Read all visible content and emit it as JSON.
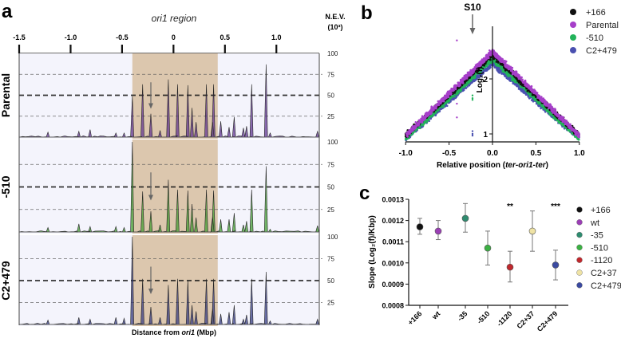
{
  "panels": {
    "a": "a",
    "b": "b",
    "c": "c"
  },
  "chart_data": [
    {
      "type": "area",
      "panel": "a",
      "title": "ori1 region",
      "xlabel_prefix": "Distance from ",
      "xlabel_italic": "ori1",
      "xlabel_suffix": " (Mbp)",
      "ylabel_line1": "N.E.V.",
      "ylabel_line2": "(10³)",
      "xticks": [
        -1.5,
        -1.0,
        -0.5,
        0,
        0.5,
        1.0
      ],
      "xtick_labels": [
        "-1.5",
        "-1.0",
        "-0.5",
        "0",
        "0.5",
        "1.0"
      ],
      "xlim": [
        -1.5,
        1.42
      ],
      "yticks": [
        25,
        50,
        75,
        100
      ],
      "ytick_labels": [
        "25",
        "50",
        "75",
        "100"
      ],
      "ylim": [
        0,
        100
      ],
      "highlight_region": [
        -0.4,
        0.43
      ],
      "arrow_position": -0.22,
      "tracks": [
        {
          "name": "Parental",
          "color": "#5b2d8e",
          "peaks": [
            [
              -1.22,
              6
            ],
            [
              -0.92,
              7
            ],
            [
              -0.81,
              9
            ],
            [
              -0.56,
              5
            ],
            [
              -0.48,
              5
            ],
            [
              -0.4,
              49
            ],
            [
              -0.3,
              63
            ],
            [
              -0.22,
              28
            ],
            [
              -0.13,
              8
            ],
            [
              -0.05,
              69
            ],
            [
              0.04,
              63
            ],
            [
              0.14,
              62
            ],
            [
              0.18,
              35
            ],
            [
              0.22,
              18
            ],
            [
              0.32,
              63
            ],
            [
              0.38,
              18
            ],
            [
              0.39,
              63
            ],
            [
              0.46,
              19
            ],
            [
              0.54,
              12
            ],
            [
              0.59,
              24
            ],
            [
              0.68,
              11
            ],
            [
              0.71,
              13
            ],
            [
              0.76,
              63
            ],
            [
              0.9,
              87
            ],
            [
              0.94,
              5
            ],
            [
              1.4,
              7
            ]
          ]
        },
        {
          "name": "-510",
          "color": "#3a9a2a",
          "peaks": [
            [
              -1.22,
              5
            ],
            [
              -0.92,
              9
            ],
            [
              -0.81,
              6
            ],
            [
              -0.56,
              6
            ],
            [
              -0.48,
              5
            ],
            [
              -0.4,
              100
            ],
            [
              -0.3,
              45
            ],
            [
              -0.22,
              23
            ],
            [
              -0.13,
              8
            ],
            [
              -0.05,
              58
            ],
            [
              0.04,
              47
            ],
            [
              0.14,
              46
            ],
            [
              0.18,
              31
            ],
            [
              0.22,
              16
            ],
            [
              0.32,
              47
            ],
            [
              0.38,
              17
            ],
            [
              0.39,
              46
            ],
            [
              0.46,
              14
            ],
            [
              0.54,
              14
            ],
            [
              0.59,
              21
            ],
            [
              0.68,
              8
            ],
            [
              0.71,
              12
            ],
            [
              0.76,
              47
            ],
            [
              0.9,
              73
            ],
            [
              0.94,
              3
            ],
            [
              1.4,
              7
            ]
          ]
        },
        {
          "name": "C2+479",
          "color": "#2e3580",
          "peaks": [
            [
              -1.22,
              5
            ],
            [
              -0.92,
              8
            ],
            [
              -0.81,
              6
            ],
            [
              -0.56,
              8
            ],
            [
              -0.48,
              7
            ],
            [
              -0.4,
              100
            ],
            [
              -0.3,
              52
            ],
            [
              -0.22,
              20
            ],
            [
              -0.13,
              8
            ],
            [
              -0.05,
              45
            ],
            [
              0.04,
              52
            ],
            [
              0.14,
              50
            ],
            [
              0.18,
              22
            ],
            [
              0.22,
              15
            ],
            [
              0.32,
              52
            ],
            [
              0.38,
              18
            ],
            [
              0.39,
              52
            ],
            [
              0.46,
              12
            ],
            [
              0.54,
              14
            ],
            [
              0.59,
              22
            ],
            [
              0.68,
              6
            ],
            [
              0.71,
              11
            ],
            [
              0.76,
              52
            ],
            [
              0.9,
              60
            ],
            [
              0.94,
              4
            ],
            [
              1.4,
              6
            ]
          ]
        }
      ]
    },
    {
      "type": "scatter",
      "panel": "b",
      "annotation": "S10",
      "annotation_x": -0.23,
      "xlabel_prefix": "Relative position (",
      "xlabel_italic": "ter-ori1-ter",
      "xlabel_suffix": ")",
      "ylabel": "Log₂(f)",
      "xlim": [
        -1.0,
        1.0
      ],
      "ylim": [
        0.85,
        2.95
      ],
      "xticks": [
        -1.0,
        -0.5,
        0.0,
        0.5,
        1.0
      ],
      "xtick_labels": [
        "-1.0",
        "-0.5",
        "0.0",
        "0.5",
        "1.0"
      ],
      "yticks": [
        1,
        2
      ],
      "ytick_labels": [
        "1",
        "2"
      ],
      "legend_position": "top-right",
      "series": [
        {
          "name": "C2+479",
          "color": "#4a50b0",
          "peak": 2.28,
          "end": 0.92,
          "outliers": [
            [
              -0.23,
              1.0
            ],
            [
              -0.23,
              1.05
            ],
            [
              -0.23,
              0.97
            ]
          ]
        },
        {
          "name": "-510",
          "color": "#22b35a",
          "peak": 2.36,
          "end": 0.92,
          "outliers": [
            [
              -0.23,
              1.65
            ],
            [
              -0.23,
              1.7
            ],
            [
              -0.23,
              1.62
            ]
          ]
        },
        {
          "name": "+166",
          "color": "#111111",
          "peak": 2.44,
          "end": 0.97,
          "outliers": []
        },
        {
          "name": "Parental",
          "color": "#a63fc9",
          "peak": 2.5,
          "end": 0.97,
          "outliers": [
            [
              -0.41,
              2.7
            ],
            [
              -0.41,
              1.55
            ],
            [
              -0.41,
              1.3
            ]
          ]
        }
      ],
      "legend": [
        {
          "name": "+166",
          "color": "#111111"
        },
        {
          "name": "Parental",
          "color": "#a63fc9"
        },
        {
          "name": "-510",
          "color": "#22b35a"
        },
        {
          "name": "C2+479",
          "color": "#4a50b0"
        }
      ]
    },
    {
      "type": "scatter",
      "panel": "c",
      "ylabel": "Slope (Log₂(f)/Kbp)",
      "ylim": [
        0.0008,
        0.0013
      ],
      "yticks": [
        0.0008,
        0.0009,
        0.001,
        0.0011,
        0.0012,
        0.0013
      ],
      "ytick_labels": [
        "0.0008",
        "0.0009",
        "0.0010",
        "0.0011",
        "0.0012",
        "0.0013"
      ],
      "categories": [
        "+166",
        "wt",
        "-35",
        "-510",
        "-1120",
        "C2+37",
        "C2+479"
      ],
      "values": [
        0.00117,
        0.00115,
        0.00121,
        0.00107,
        0.00098,
        0.00115,
        0.00099
      ],
      "error_low": [
        0.001135,
        0.00111,
        0.001145,
        0.00099,
        0.00091,
        0.001055,
        0.00092
      ],
      "error_high": [
        0.00121,
        0.0012,
        0.00128,
        0.00115,
        0.001055,
        0.001245,
        0.00106
      ],
      "colors": [
        "#111111",
        "#9b3fb5",
        "#2e8b6f",
        "#3cb043",
        "#c0282d",
        "#efe3a5",
        "#3b4aa0"
      ],
      "significance": [
        "",
        "",
        "",
        "",
        "**",
        "",
        "***"
      ],
      "legend_position": "right",
      "legend": [
        "+166",
        "wt",
        "-35",
        "-510",
        "-1120",
        "C2+37",
        "C2+479"
      ]
    }
  ]
}
